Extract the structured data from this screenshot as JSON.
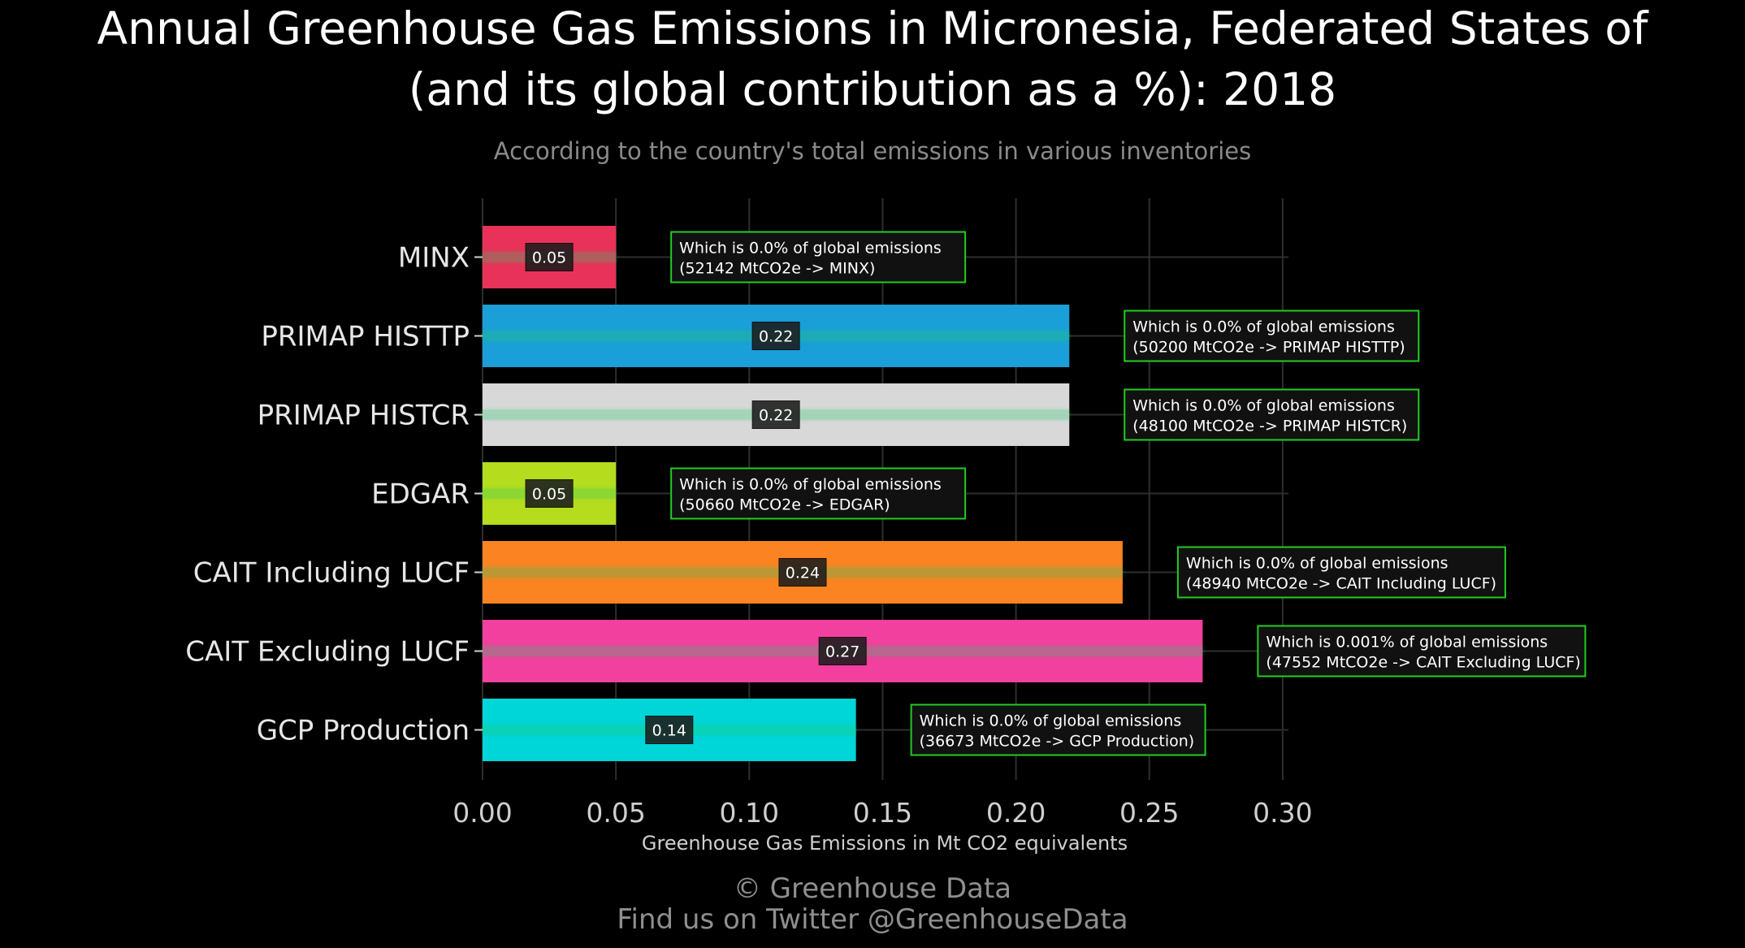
{
  "title_lines": [
    "Annual Greenhouse Gas Emissions in Micronesia, Federated States of",
    "(and its global contribution as a %): 2018"
  ],
  "subtitle": "According to the country's total emissions in various inventories",
  "credits": {
    "line1": "© Greenhouse Data",
    "line2": "Find us on Twitter @GreenhouseData"
  },
  "chart_data": {
    "type": "bar",
    "orientation": "horizontal",
    "title": "Annual Greenhouse Gas Emissions in Micronesia, Federated States of (and its global contribution as a %): 2018",
    "subtitle": "According to the country's total emissions in various inventories",
    "xlabel": "Greenhouse Gas Emissions in Mt CO2 equivalents",
    "ylabel": "",
    "xlim": [
      0,
      0.3
    ],
    "xticks": [
      "0.00",
      "0.05",
      "0.10",
      "0.15",
      "0.20",
      "0.25",
      "0.30"
    ],
    "grid": true,
    "categories": [
      "MINX",
      "PRIMAP HISTTP",
      "PRIMAP HISTCR",
      "EDGAR",
      "CAIT Including LUCF",
      "CAIT Excluding LUCF",
      "GCP Production"
    ],
    "values": [
      0.05,
      0.22,
      0.22,
      0.05,
      0.24,
      0.27,
      0.14
    ],
    "value_labels": [
      "0.05",
      "0.22",
      "0.22",
      "0.05",
      "0.24",
      "0.27",
      "0.14"
    ],
    "colors": [
      "#e8325a",
      "#1a9fd8",
      "#d8d8d8",
      "#b6dc1e",
      "#fb8322",
      "#f2409e",
      "#00d5d8"
    ],
    "annotations": [
      [
        "Which is 0.0% of global emissions",
        "(52142 MtCO2e -> MINX)"
      ],
      [
        "Which is 0.0% of global emissions",
        "(50200 MtCO2e -> PRIMAP HISTTP)"
      ],
      [
        "Which is 0.0% of global emissions",
        "(48100 MtCO2e -> PRIMAP HISTCR)"
      ],
      [
        "Which is 0.0% of global emissions",
        "(50660 MtCO2e -> EDGAR)"
      ],
      [
        "Which is 0.0% of global emissions",
        "(48940 MtCO2e -> CAIT Including LUCF)"
      ],
      [
        "Which is 0.001% of global emissions",
        "(47552 MtCO2e -> CAIT Excluding LUCF)"
      ],
      [
        "Which is 0.0% of global emissions",
        "(36673 MtCO2e -> GCP Production)"
      ]
    ],
    "annotation_color": "#22cc22",
    "background": "#000000"
  }
}
